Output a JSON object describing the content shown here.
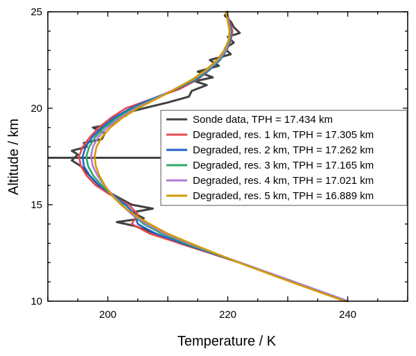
{
  "chart_data": {
    "type": "line",
    "xlabel": "Temperature / K",
    "ylabel": "Altitude / km",
    "xlim": [
      190,
      250
    ],
    "ylim": [
      10,
      25
    ],
    "x_ticks": [
      200,
      220,
      240
    ],
    "y_ticks": [
      10,
      15,
      20,
      25
    ],
    "grid": false,
    "legend_position": "right",
    "tropopause_line": {
      "altitude": 17.434,
      "xmin": 190,
      "xmax": 223.5,
      "color": "#404040"
    },
    "series": [
      {
        "name": "Sonde data, TPH = 17.434 km",
        "color": "#404040",
        "y": [
          10.0,
          11.0,
          12.0,
          12.5,
          13.0,
          13.5,
          13.9,
          14.1,
          14.3,
          14.6,
          14.8,
          15.0,
          15.5,
          16.0,
          16.5,
          17.0,
          17.3,
          17.6,
          17.8,
          18.0,
          18.2,
          18.4,
          18.7,
          19.0,
          19.2,
          19.4,
          19.6,
          19.8,
          20.0,
          20.3,
          20.6,
          20.9,
          21.2,
          21.4,
          21.6,
          21.9,
          22.2,
          22.5,
          22.8,
          23.1,
          23.4,
          23.7,
          23.9,
          24.2,
          24.5,
          24.8,
          25.0
        ],
        "x": [
          240.0,
          231.0,
          222.0,
          217.0,
          212.0,
          208.0,
          204.5,
          201.5,
          206.0,
          204.0,
          207.5,
          204.0,
          201.0,
          198.5,
          197.0,
          195.5,
          194.0,
          195.0,
          194.0,
          196.5,
          196.0,
          199.0,
          199.5,
          197.5,
          201.0,
          200.5,
          203.0,
          203.5,
          206.0,
          210.0,
          213.5,
          214.0,
          216.5,
          214.5,
          217.5,
          215.0,
          218.5,
          217.0,
          220.5,
          219.5,
          221.0,
          220.0,
          222.0,
          221.0,
          220.5,
          219.5,
          220.0
        ]
      },
      {
        "name": "Degraded, res. 1 km, TPH = 17.305 km",
        "color": "#e8474c",
        "y": [
          10.0,
          11.0,
          12.0,
          13.0,
          13.5,
          14.0,
          14.5,
          15.0,
          15.5,
          16.0,
          16.5,
          17.0,
          17.5,
          18.0,
          18.5,
          19.0,
          19.5,
          20.0,
          20.5,
          21.0,
          21.5,
          22.0,
          22.5,
          23.0,
          23.5,
          24.0,
          24.5,
          25.0
        ],
        "x": [
          240.0,
          231.0,
          222.0,
          212.0,
          207.0,
          204.0,
          205.0,
          203.5,
          200.5,
          198.0,
          196.5,
          195.5,
          195.2,
          195.8,
          197.0,
          198.5,
          200.5,
          203.0,
          207.5,
          212.0,
          215.0,
          217.0,
          218.5,
          219.8,
          220.5,
          220.8,
          220.3,
          219.8
        ]
      },
      {
        "name": "Degraded, res. 2 km, TPH = 17.262 km",
        "color": "#1e63c8",
        "y": [
          10.0,
          11.0,
          12.0,
          13.0,
          13.5,
          14.0,
          14.5,
          15.0,
          15.5,
          16.0,
          16.5,
          17.0,
          17.5,
          18.0,
          18.5,
          19.0,
          19.5,
          20.0,
          20.5,
          21.0,
          21.5,
          22.0,
          22.5,
          23.0,
          23.5,
          24.0,
          24.5,
          25.0
        ],
        "x": [
          240.0,
          231.0,
          222.0,
          212.5,
          208.0,
          205.0,
          204.5,
          203.0,
          200.8,
          198.6,
          197.0,
          196.0,
          195.8,
          196.3,
          197.4,
          199.0,
          201.0,
          203.8,
          207.5,
          211.5,
          214.8,
          217.0,
          218.7,
          219.8,
          220.4,
          220.6,
          220.2,
          219.8
        ]
      },
      {
        "name": "Degraded, res. 3 km, TPH = 17.165 km",
        "color": "#2fa86a",
        "y": [
          10.0,
          11.0,
          12.0,
          13.0,
          13.5,
          14.0,
          14.5,
          15.0,
          15.5,
          16.0,
          16.5,
          17.0,
          17.5,
          18.0,
          18.5,
          19.0,
          19.5,
          20.0,
          20.5,
          21.0,
          21.5,
          22.0,
          22.5,
          23.0,
          23.5,
          24.0,
          24.5,
          25.0
        ],
        "x": [
          240.0,
          231.0,
          222.0,
          213.0,
          209.0,
          206.0,
          204.0,
          202.5,
          200.8,
          199.0,
          197.6,
          196.7,
          196.4,
          196.9,
          197.9,
          199.4,
          201.5,
          204.3,
          207.8,
          211.3,
          214.5,
          216.8,
          218.6,
          219.7,
          220.3,
          220.5,
          220.1,
          219.8
        ]
      },
      {
        "name": "Degraded, res. 4 km, TPH = 17.021 km",
        "color": "#b07ad6",
        "y": [
          10.0,
          11.0,
          12.0,
          13.0,
          13.5,
          14.0,
          14.5,
          15.0,
          15.5,
          16.0,
          16.5,
          17.0,
          17.5,
          18.0,
          18.5,
          19.0,
          19.5,
          20.0,
          20.5,
          21.0,
          21.5,
          22.0,
          22.5,
          23.0,
          23.5,
          24.0,
          24.5,
          25.0
        ],
        "x": [
          240.0,
          231.0,
          222.0,
          213.5,
          209.5,
          206.5,
          204.0,
          202.3,
          200.8,
          199.4,
          198.3,
          197.5,
          197.2,
          197.5,
          198.4,
          199.9,
          202.0,
          204.7,
          208.0,
          211.2,
          214.2,
          216.6,
          218.4,
          219.6,
          220.2,
          220.4,
          220.1,
          219.8
        ]
      },
      {
        "name": "Degraded, res. 5 km, TPH = 16.889 km",
        "color": "#d29b00",
        "y": [
          10.0,
          11.0,
          12.0,
          13.0,
          13.5,
          14.0,
          14.5,
          15.0,
          15.5,
          16.0,
          16.5,
          17.0,
          17.5,
          18.0,
          18.5,
          19.0,
          19.5,
          20.0,
          20.5,
          21.0,
          21.5,
          22.0,
          22.5,
          23.0,
          23.5,
          24.0,
          24.5,
          25.0
        ],
        "x": [
          239.5,
          230.5,
          221.8,
          213.8,
          210.0,
          207.0,
          204.3,
          202.2,
          200.6,
          199.5,
          198.6,
          198.0,
          197.8,
          198.1,
          199.0,
          200.4,
          202.4,
          205.0,
          208.2,
          211.3,
          214.1,
          216.4,
          218.2,
          219.4,
          220.1,
          220.3,
          220.0,
          219.7
        ]
      }
    ]
  }
}
